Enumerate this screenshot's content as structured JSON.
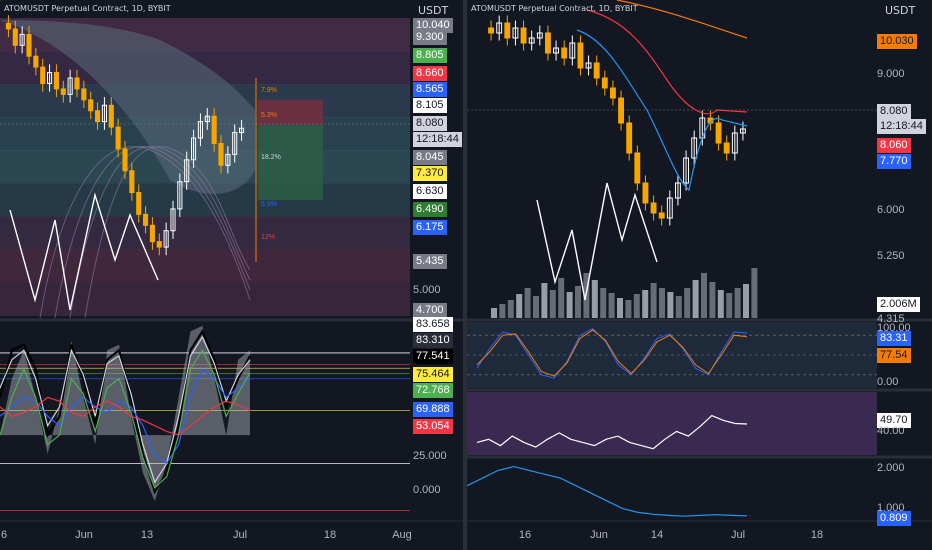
{
  "left": {
    "title": "ATOMUSDT Perpetual Contract, 1D, BYBIT",
    "currency": "USDT",
    "price_tags": [
      {
        "v": "10.040",
        "bg": "#787b86",
        "fg": "#ffffff"
      },
      {
        "v": "9.300",
        "bg": "#787b86",
        "fg": "#ffffff"
      },
      {
        "v": "8.805",
        "bg": "#4caf50",
        "fg": "#ffffff"
      },
      {
        "v": "8.660",
        "bg": "#f23645",
        "fg": "#ffffff"
      },
      {
        "v": "8.565",
        "bg": "#2962ff",
        "fg": "#ffffff"
      },
      {
        "v": "8.105",
        "bg": "#ffffff",
        "fg": "#131722"
      },
      {
        "v": "8.080",
        "bg": "#d1d4dc",
        "fg": "#131722"
      },
      {
        "v": "12:18:44",
        "bg": "#d1d4dc",
        "fg": "#131722"
      },
      {
        "v": "8.045",
        "bg": "#787b86",
        "fg": "#ffffff"
      },
      {
        "v": "7.370",
        "bg": "#ffeb3b",
        "fg": "#131722"
      },
      {
        "v": "6.630",
        "bg": "#ffffff",
        "fg": "#131722"
      },
      {
        "v": "6.490",
        "bg": "#2e7d32",
        "fg": "#ffffff"
      },
      {
        "v": "6.175",
        "bg": "#2962ff",
        "fg": "#ffffff"
      },
      {
        "v": "5.435",
        "bg": "#787b86",
        "fg": "#ffffff"
      },
      {
        "v": "5.000",
        "bg": "",
        "fg": "#b2b5be"
      },
      {
        "v": "4.700",
        "bg": "#787b86",
        "fg": "#ffffff"
      }
    ],
    "fib_labels": [
      "7.9%",
      "5.3%",
      "18.2%",
      "6.9%",
      "12%"
    ],
    "osc_tags": [
      {
        "v": "83.658",
        "bg": "#ffffff",
        "fg": "#131722"
      },
      {
        "v": "83.310",
        "bg": "#2a2e39",
        "fg": "#ffffff"
      },
      {
        "v": "77.541",
        "bg": "#000000",
        "fg": "#ffffff"
      },
      {
        "v": "75.464",
        "bg": "#ffeb3b",
        "fg": "#131722"
      },
      {
        "v": "72.768",
        "bg": "#4caf50",
        "fg": "#ffffff"
      },
      {
        "v": "69.888",
        "bg": "#2962ff",
        "fg": "#ffffff"
      },
      {
        "v": "53.054",
        "bg": "#f23645",
        "fg": "#ffffff"
      },
      {
        "v": "25.000",
        "bg": "",
        "fg": "#b2b5be"
      },
      {
        "v": "0.000",
        "bg": "",
        "fg": "#b2b5be"
      }
    ],
    "x_labels": [
      "6",
      "Jun",
      "13",
      "Jul",
      "18",
      "Aug"
    ]
  },
  "right": {
    "title": "ATOMUSDT Perpetual Contract, 1D, BYBIT",
    "currency": "USDT",
    "price_tags": [
      {
        "v": "10.030",
        "bg": "#f57c00",
        "fg": "#131722"
      },
      {
        "v": "9.000",
        "bg": "",
        "fg": "#b2b5be"
      },
      {
        "v": "8.080",
        "bg": "#d1d4dc",
        "fg": "#131722"
      },
      {
        "v": "12:18:44",
        "bg": "#d1d4dc",
        "fg": "#131722"
      },
      {
        "v": "8.060",
        "bg": "#f23645",
        "fg": "#ffffff"
      },
      {
        "v": "7.770",
        "bg": "#2962ff",
        "fg": "#ffffff"
      },
      {
        "v": "6.000",
        "bg": "",
        "fg": "#b2b5be"
      },
      {
        "v": "5.250",
        "bg": "",
        "fg": "#b2b5be"
      },
      {
        "v": "2.006M",
        "bg": "#ffffff",
        "fg": "#131722"
      },
      {
        "v": "4.315",
        "bg": "",
        "fg": "#b2b5be"
      }
    ],
    "stoch_tags": [
      {
        "v": "100.00",
        "bg": "",
        "fg": "#b2b5be"
      },
      {
        "v": "83.31",
        "bg": "#2962ff",
        "fg": "#ffffff"
      },
      {
        "v": "77.54",
        "bg": "#f57c00",
        "fg": "#131722"
      },
      {
        "v": "0.00",
        "bg": "",
        "fg": "#b2b5be"
      }
    ],
    "rsi_tags": [
      {
        "v": "49.70",
        "bg": "#ffffff",
        "fg": "#131722"
      },
      {
        "v": "40.00",
        "bg": "",
        "fg": "#b2b5be"
      }
    ],
    "adx_tags": [
      {
        "v": "2.000",
        "bg": "",
        "fg": "#b2b5be"
      },
      {
        "v": "1.000",
        "bg": "",
        "fg": "#b2b5be"
      },
      {
        "v": "0.809",
        "bg": "#2962ff",
        "fg": "#ffffff"
      }
    ],
    "x_labels": [
      "16",
      "Jun",
      "14",
      "Jul",
      "18"
    ]
  },
  "chart_data": [
    {
      "type": "candlestick",
      "title": "ATOMUSDT Perpetual Contract, 1D, BYBIT",
      "ylabel": "USDT",
      "ylim": [
        4.6,
        10.1
      ],
      "x_ticks": [
        "6",
        "Jun",
        "13",
        "Jul",
        "18",
        "Aug"
      ],
      "last_price": 8.08,
      "countdown": "12:18:44",
      "close_series": [
        9.9,
        9.6,
        9.8,
        9.4,
        9.2,
        8.9,
        9.1,
        8.8,
        8.7,
        9.0,
        8.8,
        8.6,
        8.4,
        8.2,
        8.5,
        8.1,
        7.7,
        7.3,
        6.9,
        6.5,
        6.3,
        6.0,
        5.9,
        6.2,
        6.6,
        7.1,
        7.5,
        7.9,
        8.2,
        8.3,
        7.8,
        7.4,
        7.6,
        8.0,
        8.08
      ],
      "levels": [
        10.04,
        9.3,
        8.805,
        8.66,
        8.565,
        8.105,
        8.045,
        7.37,
        6.63,
        6.49,
        6.175,
        5.435,
        4.7
      ],
      "fib_percent": [
        "7.9%",
        "5.3%",
        "18.2%",
        "6.9%",
        "12%"
      ]
    },
    {
      "type": "line",
      "title": "",
      "ylim": [
        -5,
        100
      ],
      "lines": [
        83.658,
        83.31,
        77.541,
        75.464,
        72.768,
        69.888,
        53.054,
        25.0,
        0.0
      ],
      "series": [
        {
          "color": "#000000",
          "values": [
            60,
            85,
            88,
            75,
            40,
            50,
            88,
            70,
            45,
            80,
            85,
            60,
            30,
            10,
            20,
            45,
            85,
            95,
            80,
            55,
            70,
            82
          ]
        },
        {
          "color": "#d1d4dc",
          "values": [
            65,
            80,
            85,
            70,
            45,
            55,
            85,
            72,
            50,
            78,
            82,
            62,
            35,
            15,
            25,
            50,
            82,
            92,
            78,
            58,
            72,
            80
          ]
        },
        {
          "color": "#2962ff",
          "values": [
            50,
            55,
            60,
            58,
            50,
            45,
            55,
            60,
            55,
            52,
            58,
            55,
            45,
            30,
            25,
            35,
            60,
            75,
            70,
            60,
            65,
            70
          ]
        },
        {
          "color": "#4caf50",
          "values": [
            40,
            60,
            75,
            60,
            35,
            40,
            70,
            62,
            42,
            65,
            70,
            52,
            28,
            12,
            18,
            40,
            75,
            85,
            72,
            50,
            62,
            73
          ]
        },
        {
          "color": "#f23645",
          "values": [
            55,
            50,
            52,
            55,
            60,
            58,
            52,
            50,
            55,
            58,
            55,
            50,
            48,
            45,
            42,
            40,
            45,
            50,
            55,
            58,
            56,
            53
          ]
        }
      ]
    },
    {
      "type": "candlestick",
      "title": "ATOMUSDT Perpetual Contract, 1D, BYBIT",
      "ylabel": "USDT",
      "ylim": [
        4.3,
        10.3
      ],
      "x_ticks": [
        "16",
        "Jun",
        "14",
        "Jul",
        "18"
      ],
      "last_price": 8.08,
      "countdown": "12:18:44",
      "close_series": [
        10.0,
        10.2,
        9.9,
        10.1,
        9.8,
        9.9,
        10.0,
        9.6,
        9.7,
        9.5,
        9.8,
        9.3,
        9.4,
        9.1,
        8.9,
        8.7,
        8.2,
        7.6,
        7.0,
        6.6,
        6.4,
        6.3,
        6.7,
        7.0,
        7.5,
        7.9,
        8.3,
        8.2,
        7.8,
        7.6,
        8.0,
        8.08
      ],
      "ma_values": {
        "ema_red": 8.06,
        "ema_blue": 7.77,
        "ma_orange": 10.03
      },
      "volume_last": "2.006M"
    },
    {
      "type": "line",
      "title": "",
      "ylim": [
        0,
        100
      ],
      "series": [
        {
          "color": "#2962ff",
          "values": [
            30,
            60,
            85,
            80,
            50,
            20,
            15,
            40,
            80,
            90,
            70,
            35,
            20,
            45,
            75,
            82,
            60,
            30,
            20,
            55,
            85,
            83.31
          ]
        },
        {
          "color": "#f57c00",
          "values": [
            35,
            55,
            80,
            82,
            55,
            25,
            18,
            38,
            75,
            88,
            72,
            40,
            22,
            42,
            70,
            80,
            62,
            35,
            22,
            50,
            80,
            77.54
          ]
        }
      ]
    },
    {
      "type": "line",
      "title": "",
      "ylim": [
        30,
        70
      ],
      "series": [
        {
          "color": "#ffffff",
          "values": [
            38,
            40,
            36,
            42,
            38,
            35,
            40,
            44,
            40,
            38,
            36,
            40,
            42,
            38,
            36,
            34,
            40,
            45,
            42,
            48,
            55,
            52,
            50,
            49.7
          ]
        }
      ]
    },
    {
      "type": "line",
      "title": "",
      "ylim": [
        0.7,
        2.3
      ],
      "series": [
        {
          "color": "#2196f3",
          "values": [
            1.6,
            1.8,
            2.0,
            2.1,
            2.0,
            1.9,
            1.8,
            1.6,
            1.4,
            1.2,
            1.0,
            0.9,
            0.85,
            0.82,
            0.8,
            0.82,
            0.84,
            0.82,
            0.809
          ]
        }
      ]
    }
  ]
}
